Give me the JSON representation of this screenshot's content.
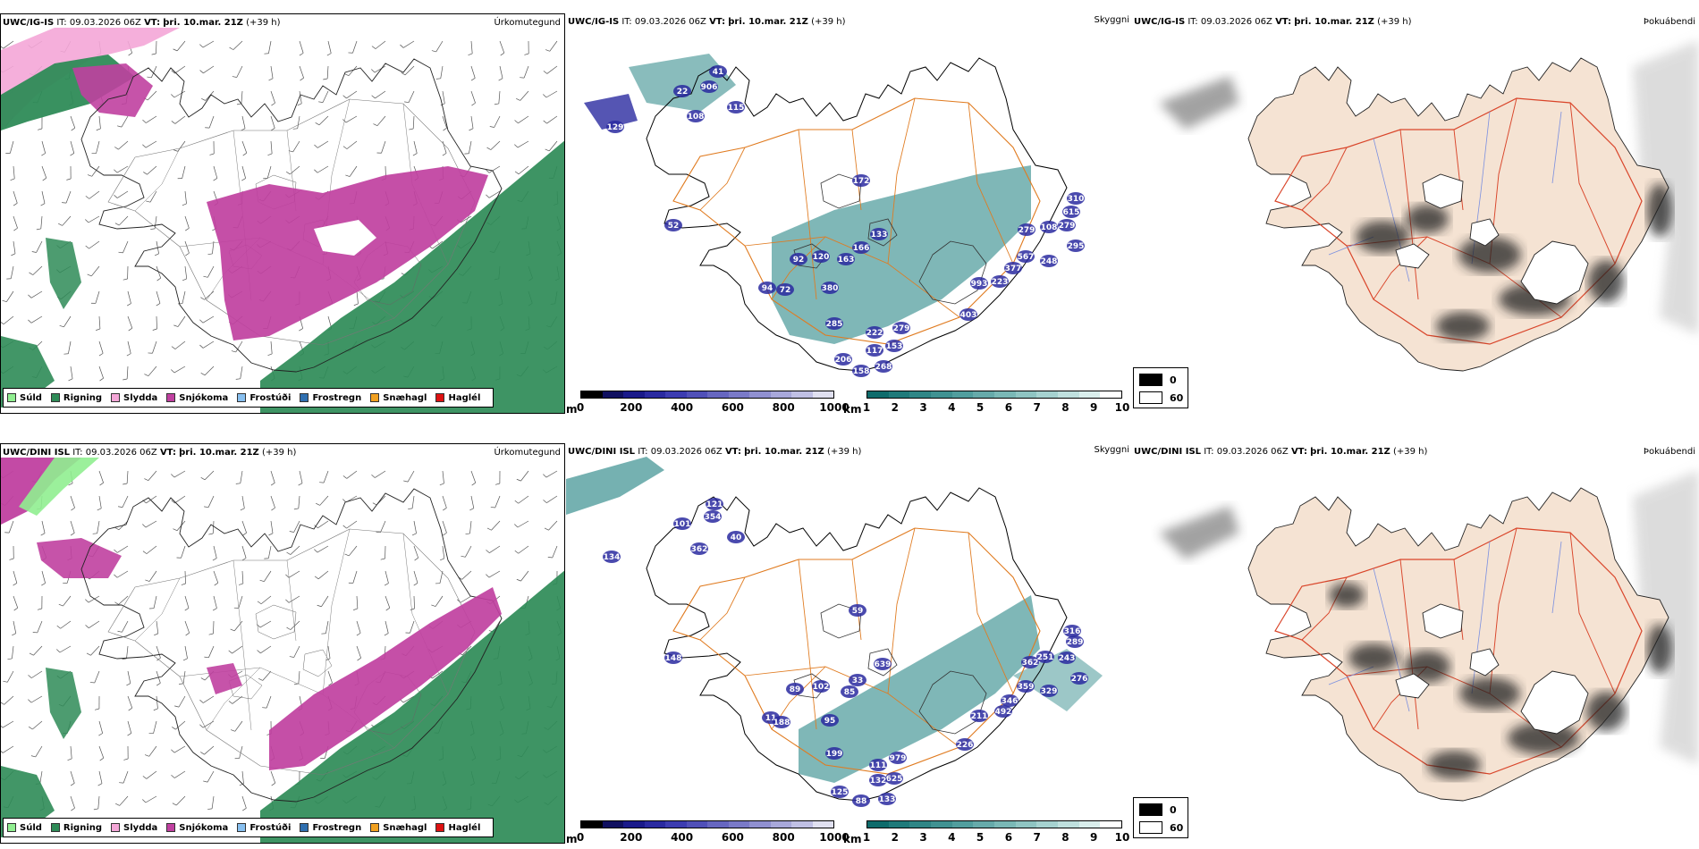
{
  "rows": [
    {
      "model": "UWC/IG-IS",
      "it_label": "IT:",
      "it_value": "09.03.2026 06Z",
      "vt_label": "VT:",
      "vt_value": "þri. 10.mar. 21Z",
      "lead": "(+39 h)",
      "panel1_label": "Úrkomutegund",
      "panel2_label": "Skyggni",
      "panel3_label": "Þokuábendi",
      "ceiling_labels": [
        {
          "t": "129"
        },
        {
          "t": "22"
        },
        {
          "t": "906"
        },
        {
          "t": "41"
        },
        {
          "t": "115"
        },
        {
          "t": "108"
        },
        {
          "t": "172"
        },
        {
          "t": "52"
        },
        {
          "t": "133"
        },
        {
          "t": "166"
        },
        {
          "t": "120"
        },
        {
          "t": "163"
        },
        {
          "t": "92"
        },
        {
          "t": "380"
        },
        {
          "t": "94"
        },
        {
          "t": "72"
        },
        {
          "t": "285"
        },
        {
          "t": "222"
        },
        {
          "t": "279"
        },
        {
          "t": "153"
        },
        {
          "t": "117"
        },
        {
          "t": "206"
        },
        {
          "t": "158"
        },
        {
          "t": "268"
        },
        {
          "t": "403"
        },
        {
          "t": "993"
        },
        {
          "t": "223"
        },
        {
          "t": "377"
        },
        {
          "t": "567"
        },
        {
          "t": "279"
        },
        {
          "t": "108"
        },
        {
          "t": "279"
        },
        {
          "t": "615"
        },
        {
          "t": "310"
        },
        {
          "t": "248"
        },
        {
          "t": "295"
        }
      ]
    },
    {
      "model": "UWC/DINI ISL",
      "it_label": "IT:",
      "it_value": "09.03.2026 06Z",
      "vt_label": "VT:",
      "vt_value": "þri. 10.mar. 21Z",
      "lead": "(+39 h)",
      "panel1_label": "Úrkomutegund",
      "panel2_label": "Skyggni",
      "panel3_label": "Þokuábendi",
      "ceiling_labels": [
        {
          "t": "134"
        },
        {
          "t": "101"
        },
        {
          "t": "354"
        },
        {
          "t": "121"
        },
        {
          "t": "40"
        },
        {
          "t": "362"
        },
        {
          "t": "59"
        },
        {
          "t": "148"
        },
        {
          "t": "639"
        },
        {
          "t": "33"
        },
        {
          "t": "102"
        },
        {
          "t": "85"
        },
        {
          "t": "89"
        },
        {
          "t": "95"
        },
        {
          "t": "11"
        },
        {
          "t": "188"
        },
        {
          "t": "199"
        },
        {
          "t": "111"
        },
        {
          "t": "979"
        },
        {
          "t": "625"
        },
        {
          "t": "132"
        },
        {
          "t": "125"
        },
        {
          "t": "88"
        },
        {
          "t": "133"
        },
        {
          "t": "226"
        },
        {
          "t": "211"
        },
        {
          "t": "492"
        },
        {
          "t": "346"
        },
        {
          "t": "359"
        },
        {
          "t": "362"
        },
        {
          "t": "251"
        },
        {
          "t": "243"
        },
        {
          "t": "289"
        },
        {
          "t": "316"
        },
        {
          "t": "329"
        },
        {
          "t": "276"
        }
      ]
    }
  ],
  "precip_legend": [
    {
      "label": "Súld",
      "color": "#90ee90"
    },
    {
      "label": "Rigning",
      "color": "#2e8b57"
    },
    {
      "label": "Slydda",
      "color": "#f4a6d7"
    },
    {
      "label": "Snjókoma",
      "color": "#c040a0"
    },
    {
      "label": "Frostúði",
      "color": "#87bfef"
    },
    {
      "label": "Frostregn",
      "color": "#2f6fb0"
    },
    {
      "label": "Snæhagl",
      "color": "#f0a020"
    },
    {
      "label": "Haglél",
      "color": "#dd1111"
    }
  ],
  "ceiling_bar": {
    "unit": "m",
    "ticks": [
      "0",
      "200",
      "400",
      "600",
      "800",
      "1000"
    ],
    "colors": [
      "#000000",
      "#101060",
      "#1a1a8a",
      "#2a2aa0",
      "#3c3cb0",
      "#5050b8",
      "#6666c0",
      "#7a7ac8",
      "#9090d0",
      "#a8a8da",
      "#c0c0e4",
      "#e0e0f0"
    ]
  },
  "vis_bar": {
    "unit": "km",
    "ticks": [
      "1",
      "2",
      "3",
      "4",
      "5",
      "6",
      "7",
      "8",
      "9",
      "10"
    ],
    "colors": [
      "#0e6b6b",
      "#1f7a7a",
      "#2f8686",
      "#409292",
      "#519e9e",
      "#66aaaa",
      "#7ab8b6",
      "#8fc4c2",
      "#a6d2d0",
      "#bfe0de",
      "#d9eeec",
      "#ffffff"
    ]
  },
  "fog_legend": [
    {
      "label": "0",
      "color": "#000000"
    },
    {
      "label": "60",
      "color": "#ffffff"
    }
  ],
  "colors": {
    "snow": "#c040a0",
    "rain": "#2e8b57",
    "sleet": "#f4a6d7",
    "drizzle": "#90ee90",
    "roads": "#e07b20",
    "vis_teal": "#3a9090",
    "ceiling_blue": "#2a2aa0",
    "land_beige": "#f5e3d3",
    "road_red": "#d9452a",
    "river_blue": "#7a8fe0"
  }
}
